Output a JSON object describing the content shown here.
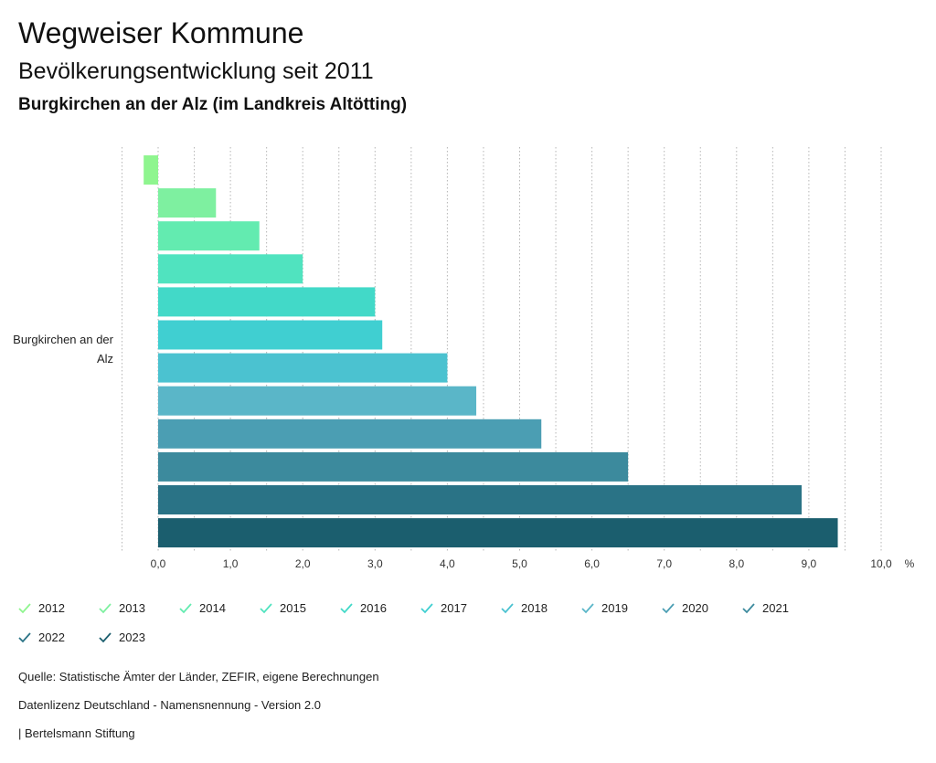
{
  "header": {
    "title": "Wegweiser Kommune",
    "subtitle": "Bevölkerungsentwicklung seit 2011",
    "region": "Burgkirchen an der Alz (im Landkreis Altötting)"
  },
  "chart_data": {
    "type": "bar",
    "orientation": "horizontal",
    "category": "Burgkirchen an der Alz",
    "unit": "%",
    "xlim": [
      -0.5,
      10.0
    ],
    "xticks": [
      "0,0",
      "1,0",
      "2,0",
      "3,0",
      "4,0",
      "5,0",
      "6,0",
      "7,0",
      "8,0",
      "9,0",
      "10,0"
    ],
    "grid": true,
    "legend_position": "bottom",
    "series": [
      {
        "name": "2012",
        "value": -0.2,
        "color": "#8ff58f"
      },
      {
        "name": "2013",
        "value": 0.8,
        "color": "#7ef0a0"
      },
      {
        "name": "2014",
        "value": 1.4,
        "color": "#63ebb0"
      },
      {
        "name": "2015",
        "value": 2.0,
        "color": "#50e3bf"
      },
      {
        "name": "2016",
        "value": 3.0,
        "color": "#42d9c8"
      },
      {
        "name": "2017",
        "value": 3.1,
        "color": "#40cfd1"
      },
      {
        "name": "2018",
        "value": 4.0,
        "color": "#4bc2d0"
      },
      {
        "name": "2019",
        "value": 4.4,
        "color": "#5ab6c8"
      },
      {
        "name": "2020",
        "value": 5.3,
        "color": "#4b9eb3"
      },
      {
        "name": "2021",
        "value": 6.5,
        "color": "#3c8a9d"
      },
      {
        "name": "2022",
        "value": 8.9,
        "color": "#2a7386"
      },
      {
        "name": "2023",
        "value": 9.4,
        "color": "#1b5e6e"
      }
    ]
  },
  "footer": {
    "source": "Quelle: Statistische Ämter der Länder, ZEFIR, eigene Berechnungen",
    "license": "Datenlizenz Deutschland - Namensnennung - Version 2.0",
    "publisher": "| Bertelsmann Stiftung"
  }
}
